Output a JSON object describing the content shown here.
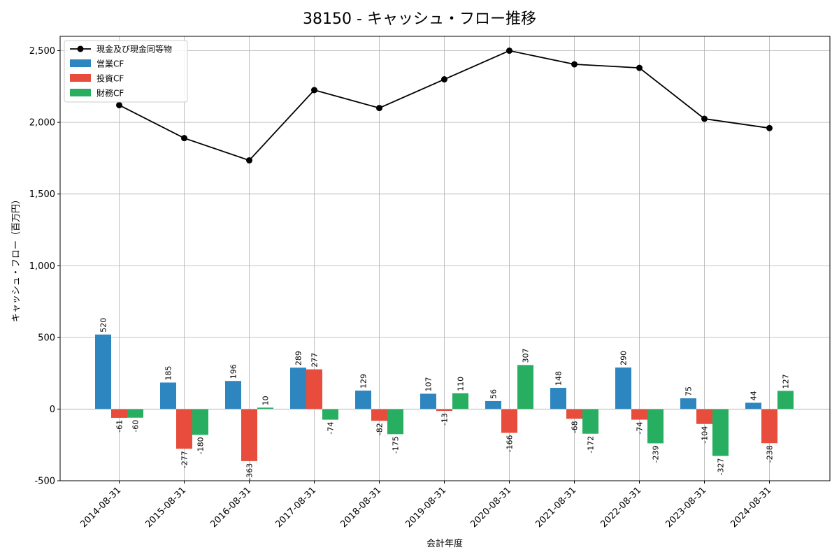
{
  "chart_data": {
    "type": "bar+line",
    "title": "38150 - キャッシュ・フロー推移",
    "xlabel": "会計年度",
    "ylabel": "キャッシュ・フロー（百万円）",
    "ylim": [
      -500,
      2600
    ],
    "yticks": [
      -500,
      0,
      500,
      1000,
      1500,
      2000,
      2500
    ],
    "ytick_labels": [
      "-500",
      "0",
      "500",
      "1,000",
      "1,500",
      "2,000",
      "2,500"
    ],
    "grid": true,
    "legend_position": "top-left",
    "categories": [
      "2014-08-31",
      "2015-08-31",
      "2016-08-31",
      "2017-08-31",
      "2018-08-31",
      "2019-08-31",
      "2020-08-31",
      "2021-08-31",
      "2022-08-31",
      "2023-08-31",
      "2024-08-31"
    ],
    "line": {
      "name": "現金及び現金同等物",
      "color": "#000000",
      "values": [
        2120,
        1890,
        1735,
        2225,
        2100,
        2300,
        2500,
        2405,
        2380,
        2025,
        1960
      ]
    },
    "series": [
      {
        "name": "営業CF",
        "color": "#2e86c1",
        "values": [
          520,
          185,
          196,
          289,
          129,
          107,
          56,
          148,
          290,
          75,
          44
        ]
      },
      {
        "name": "投資CF",
        "color": "#e74c3c",
        "values": [
          -61,
          -277,
          -363,
          277,
          -82,
          -13,
          -166,
          -68,
          -74,
          -104,
          -238
        ]
      },
      {
        "name": "財務CF",
        "color": "#27ae60",
        "values": [
          -60,
          -180,
          10,
          -74,
          -175,
          110,
          307,
          -172,
          -239,
          -327,
          127
        ]
      }
    ]
  }
}
